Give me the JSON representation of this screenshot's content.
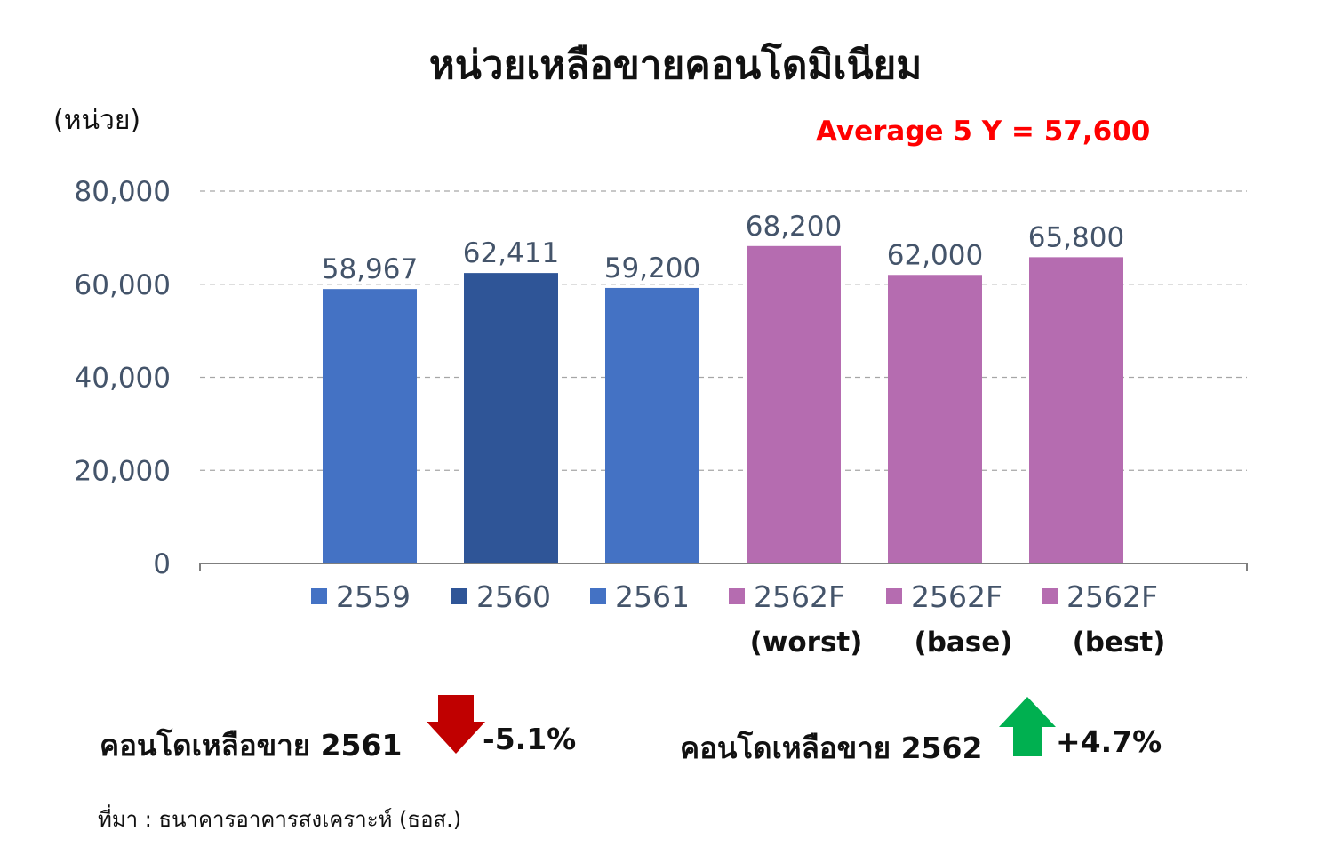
{
  "chart_data": {
    "type": "bar",
    "title": "หน่วยเหลือขายคอนโดมิเนียม",
    "ylabel": "(หน่วย)",
    "ylim": [
      0,
      80000
    ],
    "yticks": [
      "0",
      "20,000",
      "40,000",
      "60,000",
      "80,000"
    ],
    "grid": true,
    "legend": "bottom",
    "annotation": "Average 5 Y = 57,600",
    "annotation_color": "#ff0000",
    "categories": [
      {
        "name": "2559",
        "sub": "",
        "value": 58967,
        "label": "58,967",
        "color": "#4472c4"
      },
      {
        "name": "2560",
        "sub": "",
        "value": 62411,
        "label": "62,411",
        "color": "#2f5597"
      },
      {
        "name": "2561",
        "sub": "",
        "value": 59200,
        "label": "59,200",
        "color": "#4472c4"
      },
      {
        "name": "2562F",
        "sub": "(worst)",
        "value": 68200,
        "label": "68,200",
        "color": "#b56cb0"
      },
      {
        "name": "2562F",
        "sub": "(base)",
        "value": 62000,
        "label": "62,000",
        "color": "#b56cb0"
      },
      {
        "name": "2562F",
        "sub": "(best)",
        "value": 65800,
        "label": "65,800",
        "color": "#b56cb0"
      }
    ]
  },
  "notes": {
    "left": {
      "label": "คอนโดเหลือขาย 2561",
      "change": "-5.1%",
      "arrow": "down-arrow",
      "color": "#c00000"
    },
    "right": {
      "label": "คอนโดเหลือขาย 2562",
      "change": "+4.7%",
      "arrow": "up-arrow",
      "color": "#00b050"
    }
  },
  "source": "ที่มา :  ธนาคารอาคารสงเคราะห์ (ธอส.)"
}
